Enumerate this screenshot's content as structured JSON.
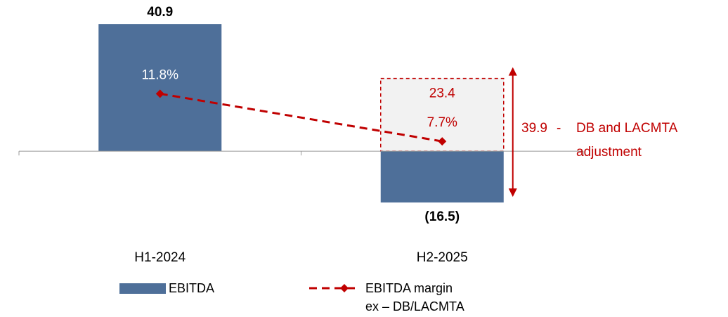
{
  "chart_data": {
    "type": "bar",
    "categories": [
      "H1-2024",
      "H2-2025"
    ],
    "series": [
      {
        "name": "EBITDA",
        "type": "bar",
        "color": "#4e6f99",
        "values": [
          40.9,
          -16.5
        ],
        "value_labels": [
          "40.9",
          "(16.5)"
        ]
      },
      {
        "name": "EBITDA margin\nex – DB/LACMTA",
        "type": "line",
        "axis": "y2",
        "color": "#c00000",
        "values": [
          11.8,
          7.7
        ],
        "value_labels": [
          "11.8%",
          "7.7%"
        ]
      }
    ],
    "adjustment": {
      "value": 23.4,
      "total": 39.9,
      "separator": "-",
      "note_lines": [
        "DB and LACMTA",
        "adjustment"
      ],
      "color": "#c00000"
    },
    "ylim": [
      -20,
      45
    ],
    "y2lim": [
      1.5,
      18.9
    ]
  }
}
